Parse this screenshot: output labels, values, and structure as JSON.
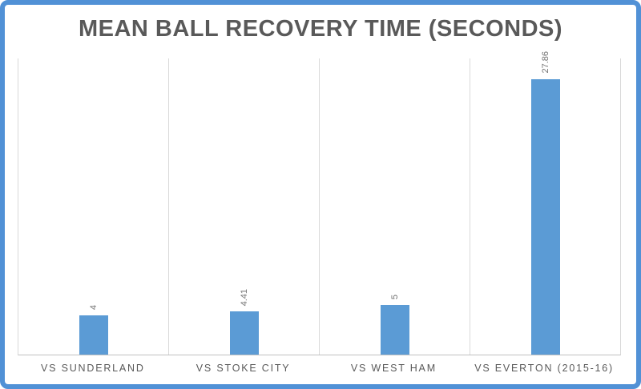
{
  "chart_data": {
    "type": "bar",
    "title": "MEAN BALL RECOVERY TIME (SECONDS)",
    "categories": [
      "VS SUNDERLAND",
      "VS STOKE CITY",
      "VS WEST HAM",
      "VS EVERTON (2015-16)"
    ],
    "values": [
      4,
      4.41,
      5,
      27.86
    ],
    "value_labels": [
      "4",
      "4.41",
      "5",
      "27.86"
    ],
    "series_name": "Mean ball recovery time (seconds)",
    "xlabel": "",
    "ylabel": "",
    "ylim": [
      0,
      30
    ],
    "grid": "vertical category separators only, no horizontal gridlines, no y-axis tick labels",
    "legend_position": "none",
    "value_label_orientation": "rotated-90-bottom-to-top",
    "colors": {
      "bar": "#5B9BD5",
      "frame_border": "#5191D6",
      "gridline": "#D9D9D9",
      "axis_line": "#C0C0C0",
      "title_text": "#595959",
      "category_text": "#595959",
      "value_text": "#737373",
      "background": "#FFFFFF"
    }
  }
}
